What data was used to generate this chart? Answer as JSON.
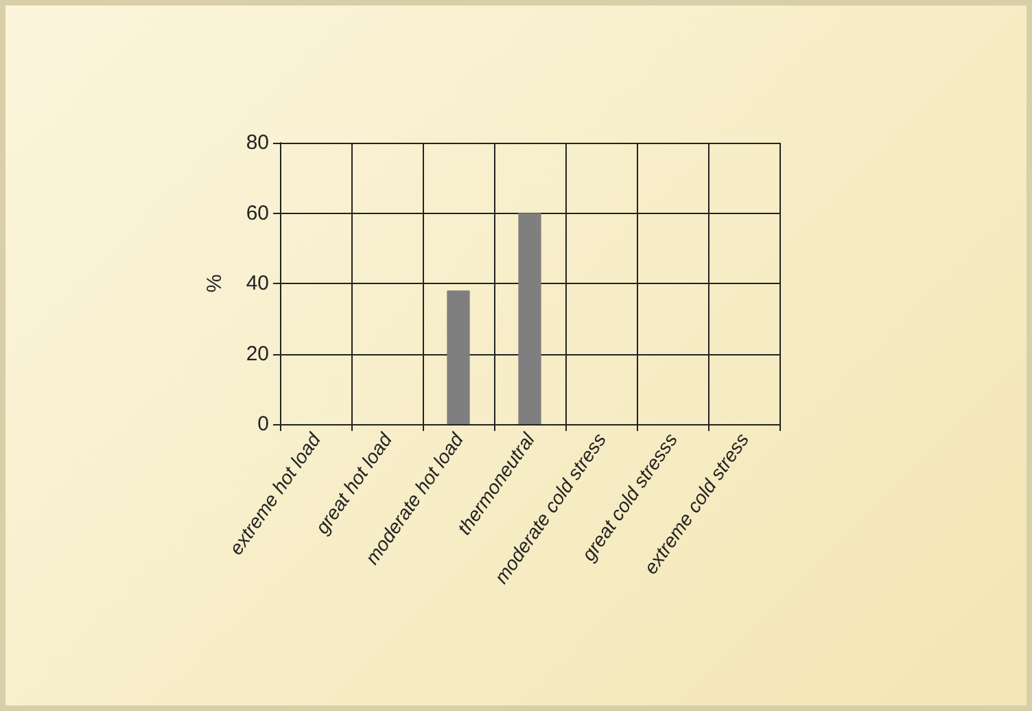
{
  "chart_data": {
    "type": "bar",
    "ylabel": "%",
    "categories": [
      "extreme hot load",
      "great hot load",
      "moderate hot load",
      "thermoneutral",
      "moderate cold stress",
      "great cold stresss",
      "extreme cold stress"
    ],
    "values": [
      0,
      0,
      38,
      60,
      0,
      0,
      0
    ],
    "color": "#7f7f7f",
    "ylim": [
      0,
      80
    ],
    "yticks": [
      0,
      20,
      40,
      60,
      80
    ],
    "grid": true
  }
}
